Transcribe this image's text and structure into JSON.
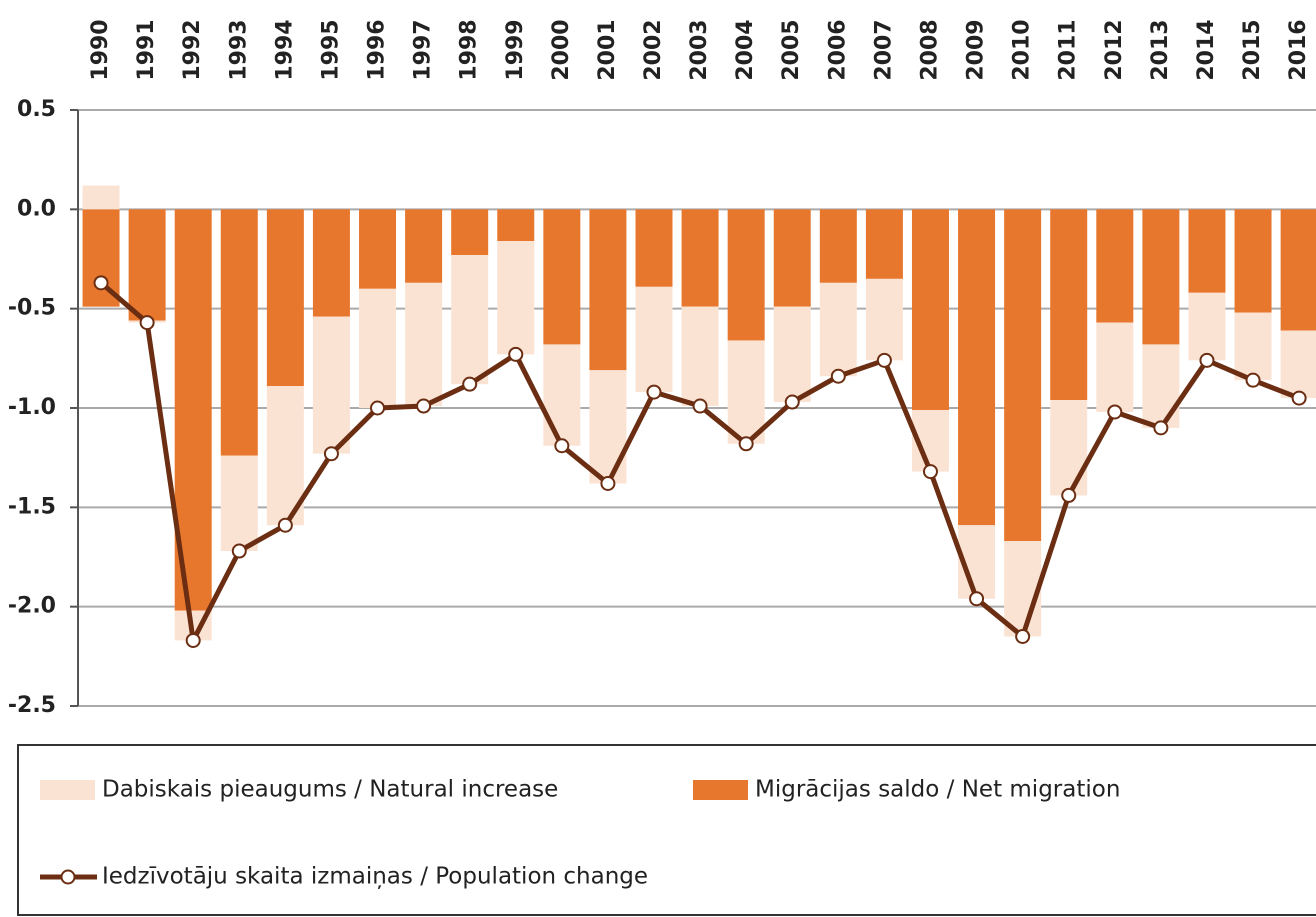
{
  "chart_data": {
    "type": "bar",
    "categories": [
      "1990",
      "1991",
      "1992",
      "1993",
      "1994",
      "1995",
      "1996",
      "1997",
      "1998",
      "1999",
      "2000",
      "2001",
      "2002",
      "2003",
      "2004",
      "2005",
      "2006",
      "2007",
      "2008",
      "2009",
      "2010",
      "2011",
      "2012",
      "2013",
      "2014",
      "2015",
      "2016"
    ],
    "series": [
      {
        "name": "Dabiskais pieaugums / Natural increase",
        "color": "#fbe3d4",
        "values": [
          0.12,
          -0.01,
          -0.15,
          -0.48,
          -0.7,
          -0.69,
          -0.6,
          -0.62,
          -0.65,
          -0.57,
          -0.51,
          -0.57,
          -0.53,
          -0.5,
          -0.52,
          -0.48,
          -0.47,
          -0.41,
          -0.31,
          -0.37,
          -0.48,
          -0.48,
          -0.45,
          -0.42,
          -0.34,
          -0.34,
          -0.34
        ]
      },
      {
        "name": "Migrācijas saldo / Net migration",
        "color": "#e8772e",
        "values": [
          -0.49,
          -0.56,
          -2.02,
          -1.24,
          -0.89,
          -0.54,
          -0.4,
          -0.37,
          -0.23,
          -0.16,
          -0.68,
          -0.81,
          -0.39,
          -0.49,
          -0.66,
          -0.49,
          -0.37,
          -0.35,
          -1.01,
          -1.59,
          -1.67,
          -0.96,
          -0.57,
          -0.68,
          -0.42,
          -0.52,
          -0.61
        ]
      },
      {
        "name": "Iedzīvotāju skaita izmaiņas / Population change",
        "type": "line",
        "color": "#6b2e12",
        "values": [
          -0.37,
          -0.57,
          -2.17,
          -1.72,
          -1.59,
          -1.23,
          -1.0,
          -0.99,
          -0.88,
          -0.73,
          -1.19,
          -1.38,
          -0.92,
          -0.99,
          -1.18,
          -0.97,
          -0.84,
          -0.76,
          -1.32,
          -1.96,
          -2.15,
          -1.44,
          -1.02,
          -1.1,
          -0.76,
          -0.86,
          -0.95
        ]
      }
    ],
    "ylim": [
      -2.5,
      0.5
    ],
    "yticks": [
      0.5,
      {
        "value": 0,
        "label": "0.0"
      },
      -0.5,
      {
        "value": -1,
        "label": "-1.0"
      },
      -1.5,
      {
        "value": -2,
        "label": "-2.0"
      },
      -2.5
    ],
    "grid": true,
    "stacked": true
  }
}
